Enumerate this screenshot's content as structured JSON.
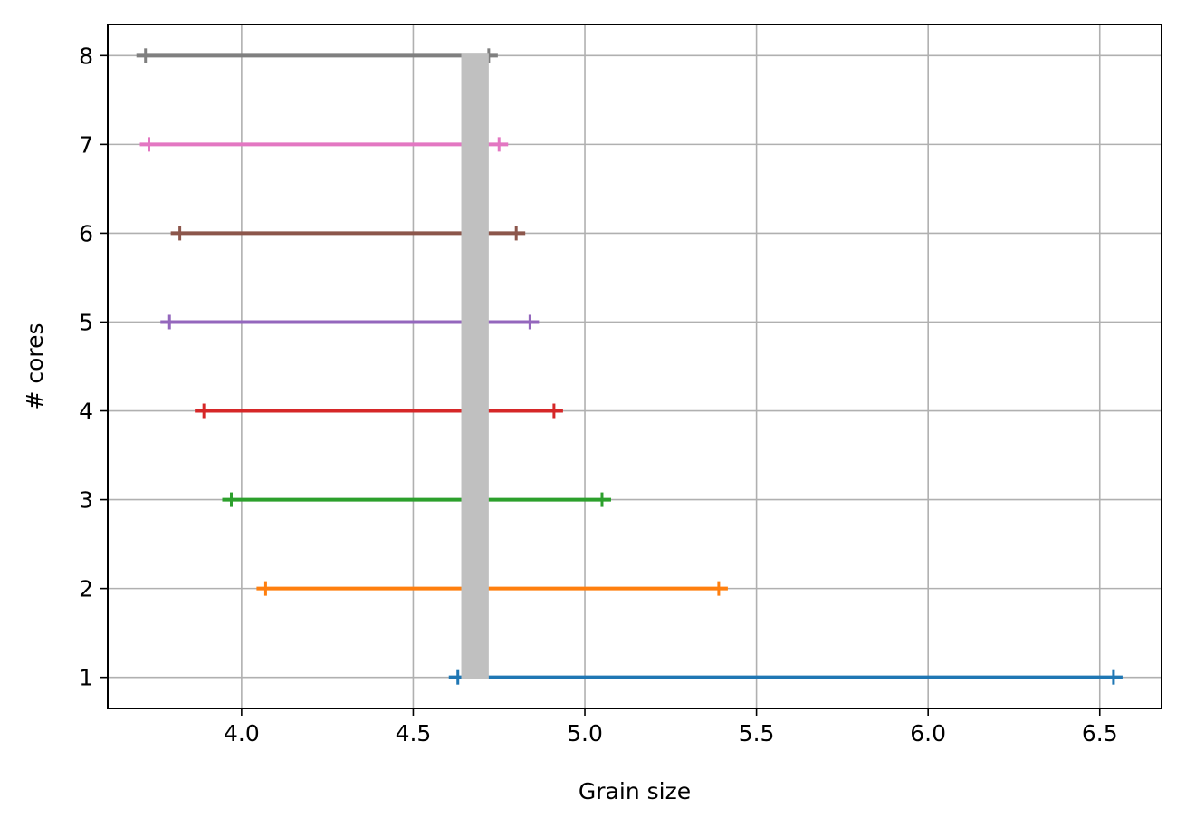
{
  "chart_data": {
    "type": "errorbar-range",
    "title": "",
    "xlabel": "Grain size",
    "ylabel": "# cores",
    "xlim": [
      3.61,
      6.68
    ],
    "ylim": [
      0.65,
      8.35
    ],
    "xticks": [
      4.0,
      4.5,
      5.0,
      5.5,
      6.0,
      6.5
    ],
    "xtick_labels": [
      "4.0",
      "4.5",
      "5.0",
      "5.5",
      "6.0",
      "6.5"
    ],
    "yticks": [
      1,
      2,
      3,
      4,
      5,
      6,
      7,
      8
    ],
    "ytick_labels": [
      "1",
      "2",
      "3",
      "4",
      "5",
      "6",
      "7",
      "8"
    ],
    "grid": true,
    "reference_band": {
      "xmin": 4.64,
      "xmax": 4.72,
      "ymin": 1,
      "ymax": 8,
      "color": "#c0c0c0"
    },
    "series": [
      {
        "y": 1,
        "xmin": 4.63,
        "xmax": 6.54,
        "color": "#1f77b4"
      },
      {
        "y": 2,
        "xmin": 4.07,
        "xmax": 5.39,
        "color": "#ff7f0e"
      },
      {
        "y": 3,
        "xmin": 3.97,
        "xmax": 5.05,
        "color": "#2ca02c"
      },
      {
        "y": 4,
        "xmin": 3.89,
        "xmax": 4.91,
        "color": "#d62728"
      },
      {
        "y": 5,
        "xmin": 3.79,
        "xmax": 4.84,
        "color": "#9467bd"
      },
      {
        "y": 6,
        "xmin": 3.82,
        "xmax": 4.8,
        "color": "#8c564b"
      },
      {
        "y": 7,
        "xmin": 3.73,
        "xmax": 4.75,
        "color": "#e377c2"
      },
      {
        "y": 8,
        "xmin": 3.72,
        "xmax": 4.72,
        "color": "#7f7f7f"
      }
    ]
  }
}
